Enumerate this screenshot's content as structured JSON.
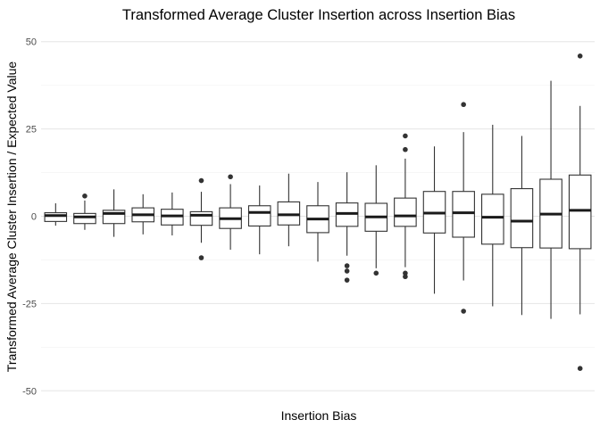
{
  "chart_data": {
    "type": "box",
    "title": "Transformed Average Cluster Insertion across Insertion Bias",
    "xlabel": "Insertion Bias",
    "ylabel": "Transformed Average Cluster Insertion / Expected Value",
    "ylim": [
      -53,
      53
    ],
    "yticks": [
      -50,
      -25,
      0,
      25,
      50
    ],
    "grid": true,
    "x_ticks_shown": false,
    "boxes": [
      {
        "q1": -1.5,
        "median": 0.2,
        "q3": 1.0,
        "low": -2.7,
        "high": 3.7,
        "outliers": []
      },
      {
        "q1": -2.1,
        "median": -0.2,
        "q3": 0.8,
        "low": -3.9,
        "high": 4.5,
        "outliers": [
          5.8
        ]
      },
      {
        "q1": -2.1,
        "median": 0.8,
        "q3": 1.7,
        "low": -5.9,
        "high": 7.7,
        "outliers": []
      },
      {
        "q1": -1.6,
        "median": 0.4,
        "q3": 2.4,
        "low": -5.2,
        "high": 6.3,
        "outliers": []
      },
      {
        "q1": -2.5,
        "median": 0.1,
        "q3": 2.0,
        "low": -5.5,
        "high": 6.8,
        "outliers": []
      },
      {
        "q1": -2.6,
        "median": 0.3,
        "q3": 1.3,
        "low": -7.6,
        "high": 7.0,
        "outliers": [
          10.2,
          -11.9
        ]
      },
      {
        "q1": -3.5,
        "median": -0.7,
        "q3": 2.4,
        "low": -9.6,
        "high": 9.2,
        "outliers": [
          11.3
        ]
      },
      {
        "q1": -2.8,
        "median": 1.1,
        "q3": 3.0,
        "low": -10.9,
        "high": 8.8,
        "outliers": []
      },
      {
        "q1": -2.5,
        "median": 0.4,
        "q3": 4.1,
        "low": -8.6,
        "high": 12.2,
        "outliers": []
      },
      {
        "q1": -4.7,
        "median": -0.8,
        "q3": 3.0,
        "low": -13.0,
        "high": 9.8,
        "outliers": []
      },
      {
        "q1": -2.9,
        "median": 0.8,
        "q3": 3.8,
        "low": -11.3,
        "high": 12.6,
        "outliers": [
          -14.2,
          -15.7,
          -18.3
        ]
      },
      {
        "q1": -4.3,
        "median": -0.2,
        "q3": 3.7,
        "low": -14.9,
        "high": 14.6,
        "outliers": [
          -16.3
        ]
      },
      {
        "q1": -2.9,
        "median": 0.1,
        "q3": 5.2,
        "low": -14.6,
        "high": 16.5,
        "outliers": [
          19.1,
          23.0,
          -16.3,
          -17.3
        ]
      },
      {
        "q1": -4.8,
        "median": 0.9,
        "q3": 7.1,
        "low": -22.2,
        "high": 20.0,
        "outliers": []
      },
      {
        "q1": -6.0,
        "median": 1.0,
        "q3": 7.1,
        "low": -18.4,
        "high": 24.1,
        "outliers": [
          32.0,
          -27.2
        ]
      },
      {
        "q1": -8.0,
        "median": -0.3,
        "q3": 6.3,
        "low": -25.8,
        "high": 26.2,
        "outliers": []
      },
      {
        "q1": -9.0,
        "median": -1.4,
        "q3": 7.9,
        "low": -28.3,
        "high": 23.0,
        "outliers": []
      },
      {
        "q1": -9.1,
        "median": 0.6,
        "q3": 10.6,
        "low": -29.4,
        "high": 38.8,
        "outliers": []
      },
      {
        "q1": -9.3,
        "median": 1.7,
        "q3": 11.8,
        "low": -28.1,
        "high": 31.6,
        "outliers": [
          45.9,
          -43.6
        ]
      }
    ]
  },
  "colors": {
    "box_fill": "#ffffff",
    "box_stroke": "#333333",
    "grid_major": "#e5e5e5",
    "grid_minor": "#f2f2f2",
    "outlier": "#333333"
  }
}
